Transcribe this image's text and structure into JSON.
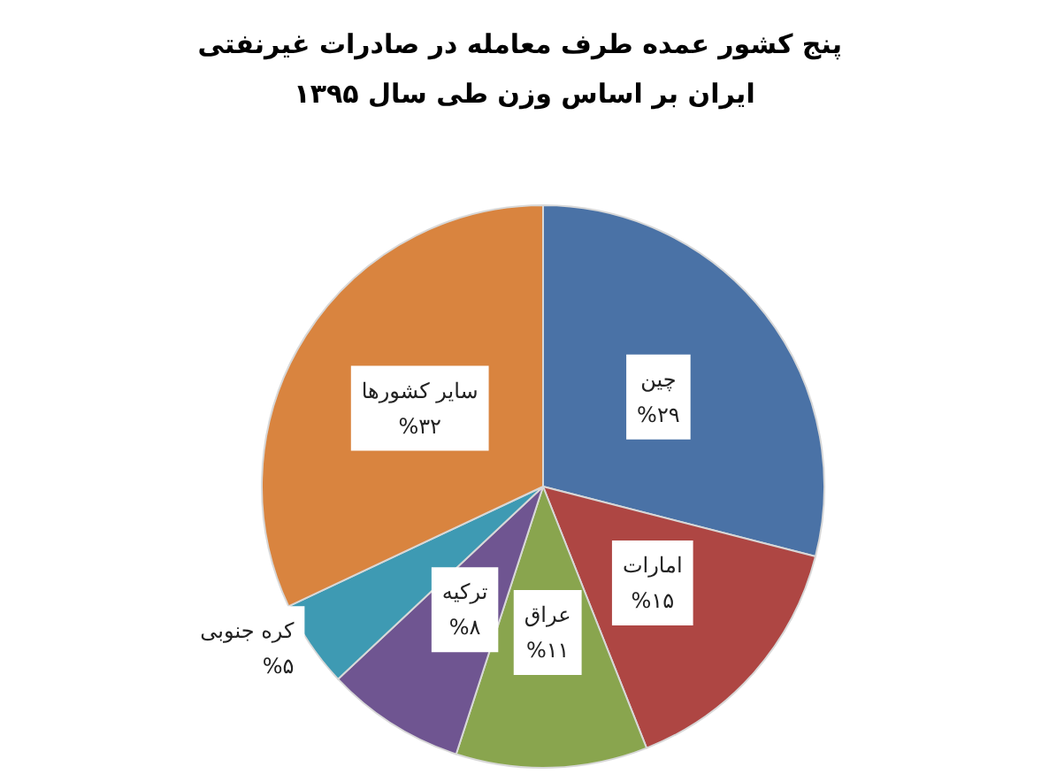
{
  "chart_data": {
    "type": "pie",
    "title": "پنج کشور عمده طرف معامله در صادرات غیرنفتی ایران بر اساس وزن طی سال ۱۳۹۵",
    "categories": [
      "چین",
      "امارات",
      "عراق",
      "ترکیه",
      "کره جنوبی",
      "سایر کشورها"
    ],
    "values": [
      29,
      15,
      11,
      8,
      5,
      32
    ],
    "value_labels": [
      "%۲۹",
      "%۱۵",
      "%۱۱",
      "%۸",
      "%۵",
      "%۳۲"
    ],
    "colors": [
      "#4a72a6",
      "#ae4643",
      "#89a54e",
      "#6f5591",
      "#3e9ab3",
      "#d9843f"
    ],
    "legend": false
  }
}
